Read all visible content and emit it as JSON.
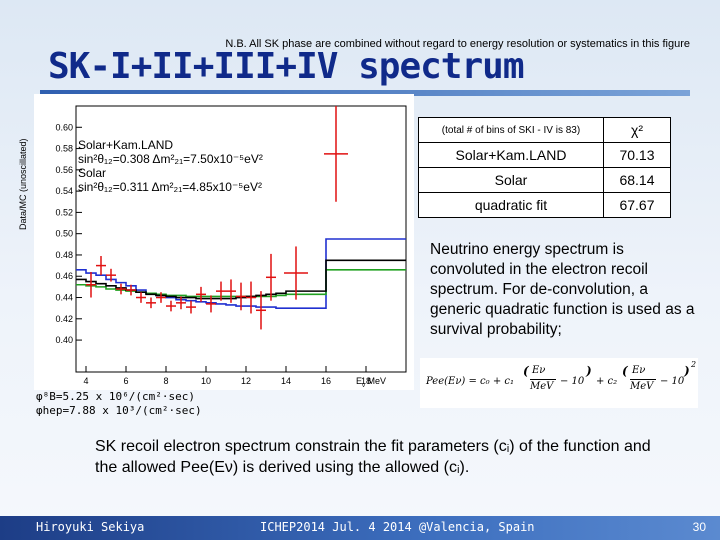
{
  "header": {
    "note": "N.B. All SK phase are combined without regard to energy resolution or systematics in this figure",
    "title": "SK-I+II+III+IV spectrum"
  },
  "colors": {
    "title": "#102a8a",
    "bar": "#2f5fb0",
    "data": "#e01010",
    "solar_kamland": "#2030d0",
    "solar": "#20a020",
    "quadratic": "#000000"
  },
  "chart_data": {
    "type": "line",
    "ylabel": "Data/MC (unoscillated)",
    "xlabel": "E",
    "xunit": "MeV",
    "xlim": [
      3.5,
      20
    ],
    "ylim": [
      0.37,
      0.62
    ],
    "xticks": [
      4,
      6,
      8,
      10,
      12,
      14,
      16,
      18
    ],
    "yticks": [
      0.4,
      0.42,
      0.44,
      0.46,
      0.48,
      0.5,
      0.52,
      0.54,
      0.56,
      0.58,
      0.6
    ],
    "legend": [
      {
        "text": "Solar+Kam.LAND"
      },
      {
        "text": "sin²θ₁₂=0.308 Δm²₂₁=7.50x10⁻⁵eV²"
      },
      {
        "text": "Solar"
      },
      {
        "text": "sin²θ₁₂=0.311 Δm²₂₁=4.85x10⁻⁵eV²"
      }
    ],
    "data": [
      {
        "x": 4.25,
        "y": 0.452,
        "err": 0.012
      },
      {
        "x": 4.75,
        "y": 0.47,
        "err": 0.009
      },
      {
        "x": 5.25,
        "y": 0.461,
        "err": 0.006
      },
      {
        "x": 5.75,
        "y": 0.448,
        "err": 0.005
      },
      {
        "x": 6.25,
        "y": 0.447,
        "err": 0.005
      },
      {
        "x": 6.75,
        "y": 0.44,
        "err": 0.005
      },
      {
        "x": 7.25,
        "y": 0.435,
        "err": 0.005
      },
      {
        "x": 7.75,
        "y": 0.44,
        "err": 0.005
      },
      {
        "x": 8.25,
        "y": 0.432,
        "err": 0.005
      },
      {
        "x": 8.75,
        "y": 0.435,
        "err": 0.006
      },
      {
        "x": 9.25,
        "y": 0.431,
        "err": 0.006
      },
      {
        "x": 9.75,
        "y": 0.443,
        "err": 0.007
      },
      {
        "x": 10.25,
        "y": 0.434,
        "err": 0.008
      },
      {
        "x": 10.75,
        "y": 0.446,
        "err": 0.009
      },
      {
        "x": 11.25,
        "y": 0.446,
        "err": 0.011
      },
      {
        "x": 11.75,
        "y": 0.441,
        "err": 0.013
      },
      {
        "x": 12.25,
        "y": 0.44,
        "err": 0.015
      },
      {
        "x": 12.75,
        "y": 0.428,
        "err": 0.018
      },
      {
        "x": 13.25,
        "y": 0.459,
        "err": 0.022
      },
      {
        "x": 14.5,
        "y": 0.463,
        "err": 0.025
      },
      {
        "x": 16.5,
        "y": 0.575,
        "err": 0.045
      }
    ],
    "series": [
      {
        "name": "Solar+Kam.LAND",
        "x": [
          3.5,
          4,
          4.5,
          5,
          5.5,
          6,
          6.5,
          7,
          7.5,
          8,
          8.5,
          9,
          9.5,
          10,
          10.5,
          11,
          11.5,
          12,
          12.5,
          13,
          13.5,
          14,
          16,
          20
        ],
        "y": [
          0.466,
          0.463,
          0.461,
          0.457,
          0.454,
          0.451,
          0.447,
          0.444,
          0.442,
          0.44,
          0.438,
          0.437,
          0.436,
          0.435,
          0.434,
          0.433,
          0.432,
          0.432,
          0.431,
          0.431,
          0.43,
          0.43,
          0.495,
          0.495
        ]
      },
      {
        "name": "Solar",
        "x": [
          3.5,
          4,
          4.5,
          5,
          5.5,
          6,
          6.5,
          7,
          7.5,
          8,
          8.5,
          9,
          9.5,
          10,
          10.5,
          11,
          11.5,
          12,
          12.5,
          13,
          13.5,
          14,
          16,
          20
        ],
        "y": [
          0.452,
          0.451,
          0.45,
          0.448,
          0.447,
          0.446,
          0.445,
          0.444,
          0.443,
          0.442,
          0.442,
          0.441,
          0.441,
          0.441,
          0.441,
          0.441,
          0.441,
          0.441,
          0.441,
          0.441,
          0.442,
          0.443,
          0.466,
          0.466
        ]
      },
      {
        "name": "quadratic fit",
        "x": [
          3.5,
          4,
          4.5,
          5,
          5.5,
          6,
          6.5,
          7,
          7.5,
          8,
          8.5,
          9,
          9.5,
          10,
          10.5,
          11,
          11.5,
          12,
          12.5,
          13,
          13.5,
          14,
          16,
          20
        ],
        "y": [
          0.457,
          0.455,
          0.453,
          0.451,
          0.449,
          0.447,
          0.445,
          0.443,
          0.442,
          0.441,
          0.44,
          0.44,
          0.439,
          0.439,
          0.439,
          0.439,
          0.44,
          0.441,
          0.442,
          0.443,
          0.444,
          0.446,
          0.475,
          0.475
        ]
      }
    ]
  },
  "table": {
    "note": "(total # of bins of SKI - IV is 83)",
    "chi_header": "χ²",
    "rows": [
      {
        "label": "Solar+Kam.LAND",
        "chi2": "70.13"
      },
      {
        "label": "Solar",
        "chi2": "68.14"
      },
      {
        "label": "quadratic fit",
        "chi2": "67.67"
      }
    ]
  },
  "description": "Neutrino energy spectrum is convoluted in the electron recoil spectrum. For de-convolution, a generic quadratic function is used as a survival probability;",
  "formula": {
    "lhs": "Pee(Eν) = c₀ + c₁",
    "mid": "Eν",
    "unit": "MeV",
    "minus": "− 10",
    "plus": "+ c₂",
    "exp": "2"
  },
  "flux": {
    "b8": "φ⁸B=5.25 x 10⁶/(cm²·sec)",
    "hep": "φhep=7.88 x 10³/(cm²·sec)"
  },
  "conclusion": "SK recoil electron spectrum constrain the fit parameters (cᵢ) of the function and the allowed Pee(Eν) is derived using the allowed (cᵢ).",
  "footer": {
    "author": "Hiroyuki Sekiya",
    "event": "ICHEP2014  Jul. 4 2014  @Valencia, Spain",
    "page": "30"
  }
}
